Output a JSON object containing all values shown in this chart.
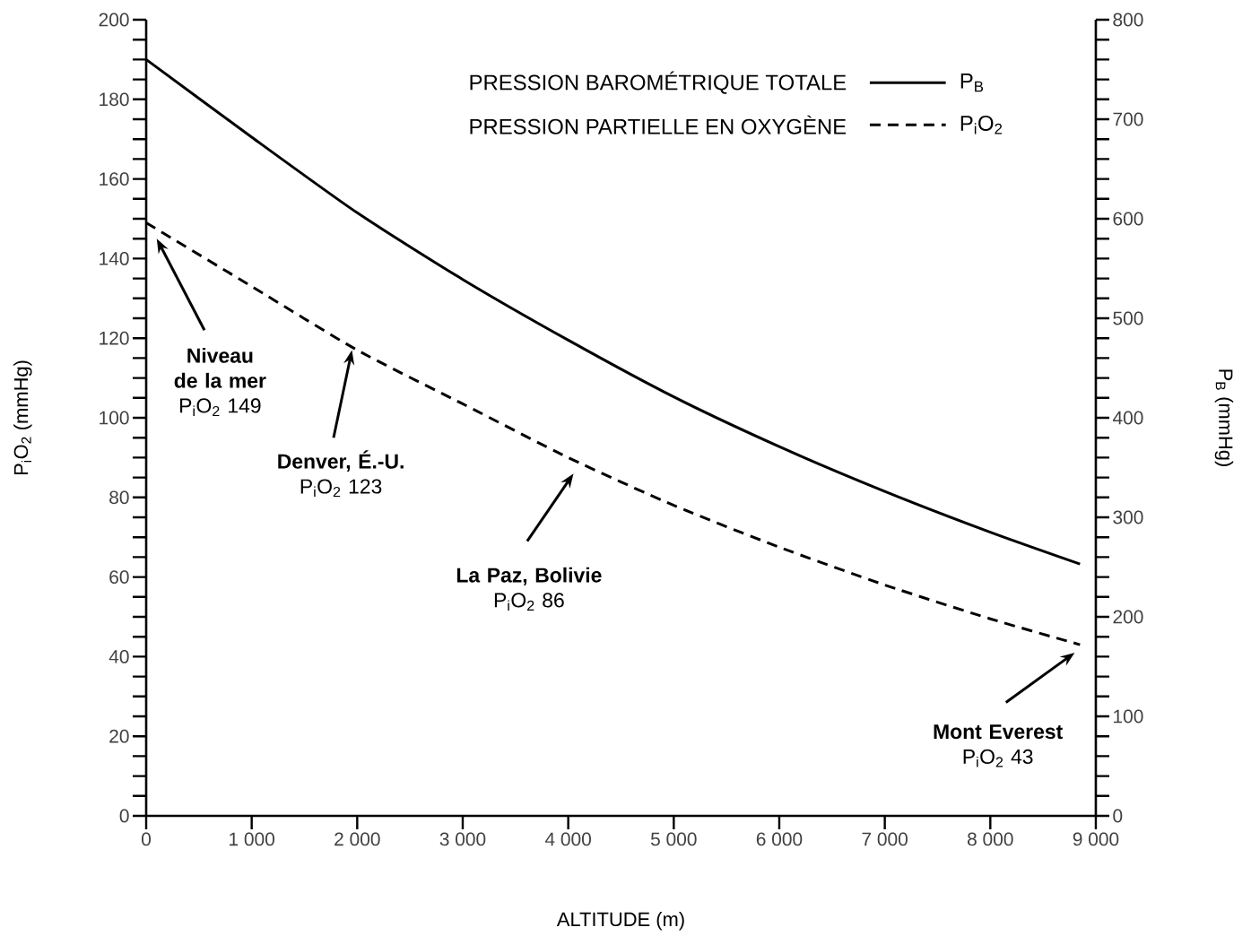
{
  "chart_data": {
    "type": "line",
    "xlabel": "ALTITUDE (m)",
    "ylabel": "P$_{i}$O$_{2}$ (mmHg)",
    "y2label": "P$_{B}$ (mmHg)",
    "x": [
      0,
      1000,
      2000,
      3000,
      4000,
      5000,
      6000,
      7000,
      8000,
      8850
    ],
    "series": [
      {
        "name": "PRESSION BAROMÉTRIQUE TOTALE",
        "color": "#000000",
        "axis": "y2",
        "line_style": "solid",
        "values": [
          760,
          682,
          606,
          539,
          478,
          421,
          371,
          326,
          285,
          253
        ]
      },
      {
        "name": "PRESSION PARTIELLE EN OXYGÈNE",
        "color": "#000000",
        "line_style": "dashed",
        "values": [
          149,
          133,
          117,
          103.5,
          90,
          78,
          67.5,
          58,
          49.5,
          43
        ]
      }
    ],
    "xlim": [
      0,
      9000
    ],
    "xticks": [
      0,
      {
        "value": 1000,
        "label": "1 000"
      },
      {
        "value": 2000,
        "label": "2 000"
      },
      {
        "value": 3000,
        "label": "3 000"
      },
      {
        "value": 4000,
        "label": "4 000"
      },
      {
        "value": 5000,
        "label": "5 000"
      },
      {
        "value": 6000,
        "label": "6 000"
      },
      {
        "value": 7000,
        "label": "7 000"
      },
      {
        "value": 8000,
        "label": "8 000"
      },
      {
        "value": 9000,
        "label": "9 000"
      }
    ],
    "ylim": [
      0,
      200
    ],
    "yticks": [
      0,
      {
        "value": 5,
        "label": null
      },
      {
        "value": 10,
        "label": null
      },
      {
        "value": 15,
        "label": null
      },
      20,
      {
        "value": 25,
        "label": null
      },
      {
        "value": 30,
        "label": null
      },
      {
        "value": 35,
        "label": null
      },
      40,
      {
        "value": 45,
        "label": null
      },
      {
        "value": 50,
        "label": null
      },
      {
        "value": 55,
        "label": null
      },
      60,
      {
        "value": 65,
        "label": null
      },
      {
        "value": 70,
        "label": null
      },
      {
        "value": 75,
        "label": null
      },
      80,
      {
        "value": 85,
        "label": null
      },
      {
        "value": 90,
        "label": null
      },
      {
        "value": 95,
        "label": null
      },
      100,
      {
        "value": 105,
        "label": null
      },
      {
        "value": 110,
        "label": null
      },
      {
        "value": 115,
        "label": null
      },
      120,
      {
        "value": 125,
        "label": null
      },
      {
        "value": 130,
        "label": null
      },
      {
        "value": 135,
        "label": null
      },
      140,
      {
        "value": 145,
        "label": null
      },
      {
        "value": 150,
        "label": null
      },
      {
        "value": 155,
        "label": null
      },
      160,
      {
        "value": 165,
        "label": null
      },
      {
        "value": 170,
        "label": null
      },
      {
        "value": 175,
        "label": null
      },
      180,
      {
        "value": 185,
        "label": null
      },
      {
        "value": 190,
        "label": null
      },
      {
        "value": 195,
        "label": null
      },
      200
    ],
    "y2lim": [
      0,
      800
    ],
    "y2ticks": [
      0,
      {
        "value": 20,
        "label": null
      },
      {
        "value": 40,
        "label": null
      },
      {
        "value": 60,
        "label": null
      },
      {
        "value": 80,
        "label": null
      },
      100,
      {
        "value": 120,
        "label": null
      },
      {
        "value": 140,
        "label": null
      },
      {
        "value": 160,
        "label": null
      },
      {
        "value": 180,
        "label": null
      },
      200,
      {
        "value": 220,
        "label": null
      },
      {
        "value": 240,
        "label": null
      },
      {
        "value": 260,
        "label": null
      },
      {
        "value": 280,
        "label": null
      },
      300,
      {
        "value": 320,
        "label": null
      },
      {
        "value": 340,
        "label": null
      },
      {
        "value": 360,
        "label": null
      },
      {
        "value": 380,
        "label": null
      },
      400,
      {
        "value": 420,
        "label": null
      },
      {
        "value": 440,
        "label": null
      },
      {
        "value": 460,
        "label": null
      },
      {
        "value": 480,
        "label": null
      },
      500,
      {
        "value": 520,
        "label": null
      },
      {
        "value": 540,
        "label": null
      },
      {
        "value": 560,
        "label": null
      },
      {
        "value": 580,
        "label": null
      },
      600,
      {
        "value": 620,
        "label": null
      },
      {
        "value": 640,
        "label": null
      },
      {
        "value": 660,
        "label": null
      },
      {
        "value": 680,
        "label": null
      },
      700,
      {
        "value": 720,
        "label": null
      },
      {
        "value": 740,
        "label": null
      },
      {
        "value": 760,
        "label": null
      },
      {
        "value": 780,
        "label": null
      },
      800
    ],
    "legend": "top right",
    "grid": false,
    "annotations": [
      "**Niveau de la mer** P$_{i}$O$_{2}$ 149",
      "**Denver, É.-U.** P$_{i}$O$_{2}$ 123",
      "**La Paz, Bolivie** P$_{i}$O$_{2}$ 86",
      "**Mont Everest** P$_{i}$O$_{2}$ 43",
      "P$_{B}$",
      "P$_{i}$O$_{2}$"
    ]
  }
}
